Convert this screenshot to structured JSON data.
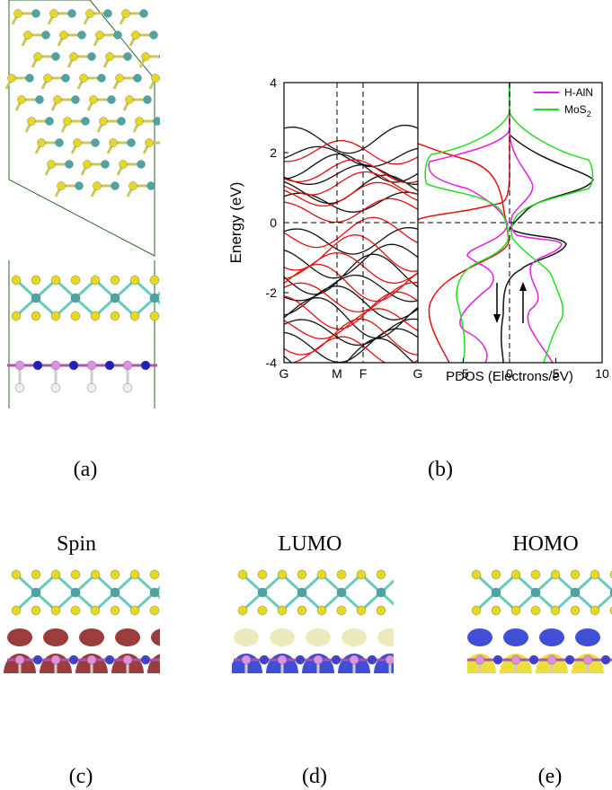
{
  "figure": {
    "labels": [
      "(a)",
      "(b)",
      "(c)",
      "(d)",
      "(e)"
    ],
    "orbital_titles": [
      "Spin",
      "LUMO",
      "HOMO"
    ],
    "band_plot": {
      "ylabel": "Energy (eV)",
      "xlabel": "PDOS (Electrons/eV)",
      "ylim": [
        -4,
        4
      ],
      "yticks": [
        -4,
        -2,
        0,
        2,
        4
      ],
      "kpoints": [
        "G",
        "M",
        "F",
        "G"
      ],
      "pdos_xlim": [
        -9.9,
        10
      ],
      "pdos_xticks": [
        -5,
        0,
        5,
        10
      ],
      "legend": [
        {
          "name": "H-AlN",
          "color": "#e020e0"
        },
        {
          "name": "MoS",
          "sub": "2",
          "color": "#22dd22"
        }
      ]
    }
  }
}
